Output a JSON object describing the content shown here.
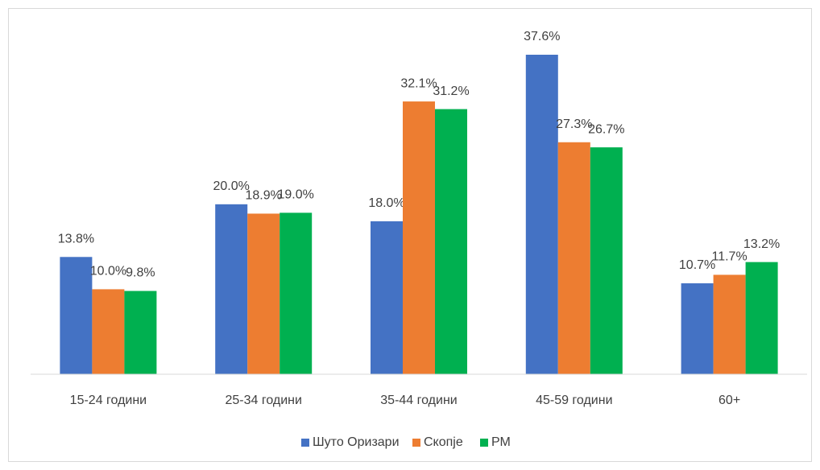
{
  "chart_data": {
    "type": "bar",
    "categories": [
      "15-24 години",
      "25-34 години",
      "35-44 години",
      "45-59 години",
      "60+"
    ],
    "series": [
      {
        "name": "Шуто Оризари",
        "color": "#4472c4",
        "values": [
          13.8,
          20.0,
          18.0,
          37.6,
          10.7
        ],
        "value_labels": [
          "13.8%",
          "20.0%",
          "18.0%",
          "37.6%",
          "10.7%"
        ]
      },
      {
        "name": "Скопје",
        "color": "#ed7d31",
        "values": [
          10.0,
          18.9,
          32.1,
          27.3,
          11.7
        ],
        "value_labels": [
          "10.0%",
          "18.9%",
          "32.1%",
          "27.3%",
          "11.7%"
        ]
      },
      {
        "name": "РМ",
        "color": "#00b050",
        "values": [
          9.8,
          19.0,
          31.2,
          26.7,
          13.2
        ],
        "value_labels": [
          "9.8%",
          "19.0%",
          "31.2%",
          "26.7%",
          "13.2%"
        ]
      }
    ],
    "legend": "bottom"
  }
}
